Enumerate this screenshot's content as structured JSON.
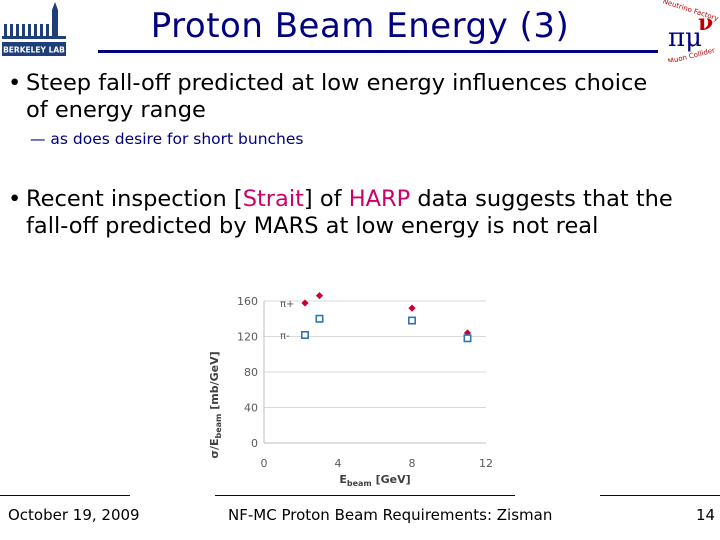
{
  "title": "Proton Beam Energy (3)",
  "bullets": [
    {
      "line1": "Steep fall-off predicted at low energy influences choice",
      "line2": "of energy range",
      "sub": "— as does desire for short bunches"
    },
    {
      "line1_a": "Recent inspection [",
      "line1_hl1": "Strait",
      "line1_b": "] of ",
      "line1_hl2": "HARP",
      "line1_c": " data suggests that the",
      "line2": "fall-off predicted by MARS at low energy is not real"
    }
  ],
  "logo_left": {
    "name": "Berkeley Lab logo",
    "text": "BERKELEY LAB"
  },
  "logo_right": {
    "name": "Neutrino Factory Muon Collider logo",
    "text_top": "Neutrino Factory",
    "text_bottom": "Muon Collider"
  },
  "chart_data": {
    "type": "scatter",
    "xlabel_main": "E",
    "xlabel_sub": "beam",
    "xlabel_unit": " [GeV]",
    "ylabel_main": "σ/E",
    "ylabel_sub": "beam",
    "ylabel_unit": " [mb/GeV]",
    "xlim": [
      0,
      12
    ],
    "ylim": [
      0,
      160
    ],
    "x_ticks": [
      0,
      4,
      8,
      12
    ],
    "y_ticks": [
      0,
      40,
      80,
      120,
      160
    ],
    "series": [
      {
        "name": "π+",
        "color": "#cc0033",
        "marker": "diamond",
        "points": [
          [
            3,
            166
          ],
          [
            8,
            152
          ],
          [
            11,
            124
          ]
        ]
      },
      {
        "name": "π-",
        "color": "#2e75b6",
        "marker": "square",
        "points": [
          [
            3,
            140
          ],
          [
            8,
            138
          ],
          [
            11,
            118
          ]
        ]
      }
    ],
    "grid": true,
    "legend_position": "top-left"
  },
  "footer": {
    "date": "October 19, 2009",
    "center": "NF-MC Proton Beam Requirements: Zisman",
    "page": "14"
  },
  "colors": {
    "accent": "#000080",
    "highlight": "#cc0066"
  }
}
